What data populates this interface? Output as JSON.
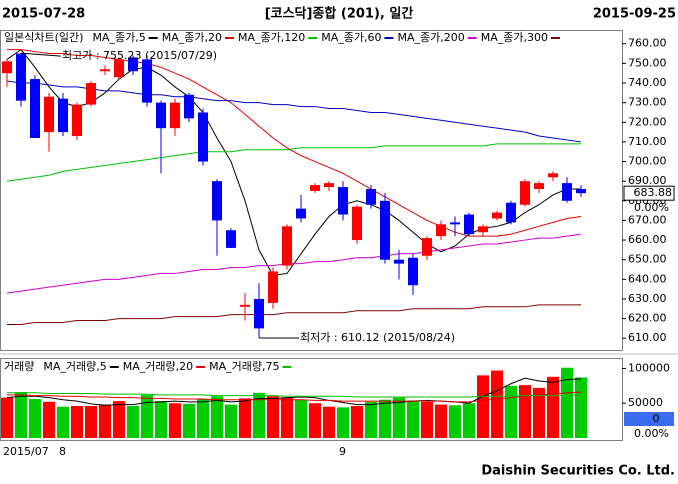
{
  "header": {
    "start_date": "2015-07-28",
    "title": "[코스닥]종합 (201), 일간",
    "end_date": "2015-09-25"
  },
  "footer": "Daishin Securities Co. Ltd.",
  "chart_data": [
    {
      "type": "candlestick",
      "legend_title": "일본식차트(일간)",
      "categories": [
        "2015/07",
        null,
        null,
        null,
        "8",
        null,
        null,
        null,
        null,
        null,
        null,
        null,
        null,
        null,
        null,
        null,
        null,
        null,
        null,
        null,
        null,
        null,
        null,
        null,
        "9",
        null,
        null,
        null,
        null,
        null,
        null,
        null,
        null,
        null,
        null,
        null,
        null,
        null,
        null,
        null,
        null,
        null
      ],
      "open": [
        745,
        755,
        742,
        715,
        732,
        713,
        729,
        746,
        743,
        753,
        752,
        730,
        717,
        734,
        725,
        690,
        665,
        626,
        630,
        628,
        647,
        676,
        685,
        687,
        687,
        660,
        686,
        680,
        650,
        651,
        652,
        662,
        669,
        673,
        664,
        671,
        679,
        678,
        686,
        692,
        689,
        686
      ],
      "high": [
        752,
        755.23,
        744,
        735,
        735,
        730,
        741,
        749,
        753,
        754,
        754,
        731,
        732,
        735,
        727,
        691,
        666,
        633,
        638,
        646,
        668,
        683,
        689,
        690,
        690,
        678,
        688,
        684,
        655,
        653,
        662,
        670,
        672,
        674,
        668,
        675,
        680,
        691,
        690,
        695,
        692,
        688
      ],
      "low": [
        738,
        728,
        712,
        705,
        713,
        711,
        728,
        744,
        742,
        744,
        728,
        694,
        713,
        720,
        698,
        652,
        656,
        619,
        610.12,
        625,
        645,
        669,
        684,
        685,
        670,
        658,
        676,
        648,
        640,
        632,
        650,
        660,
        662,
        662,
        662,
        670,
        668,
        677,
        684,
        690,
        679,
        682
      ],
      "close": [
        751,
        731,
        712,
        733,
        715,
        729,
        740,
        747,
        752,
        746,
        730,
        717,
        730,
        722,
        700,
        670,
        656,
        627,
        615,
        644,
        667,
        671,
        688,
        689,
        673,
        677,
        678,
        650,
        648,
        637,
        661,
        668,
        668,
        663,
        667,
        674,
        669,
        690,
        689,
        694,
        680,
        683.88
      ],
      "up_color": "#ff0000",
      "down_color": "#0000ff",
      "series": [
        {
          "name": "MA_종가,5",
          "color": "#000000",
          "values": [
            752,
            757,
            748,
            738,
            730,
            728,
            730,
            735,
            742,
            747,
            748,
            744,
            738,
            733,
            725,
            712,
            700,
            680,
            655,
            642,
            643,
            653,
            663,
            672,
            678,
            680,
            678,
            675,
            670,
            664,
            658,
            654,
            657,
            663,
            666,
            667,
            669,
            674,
            678,
            683,
            686,
            686
          ]
        },
        {
          "name": "MA_종가,20",
          "color": "#e00000",
          "values": [
            757,
            757,
            756,
            755,
            755,
            754,
            754,
            753,
            752,
            751,
            750,
            748,
            745,
            742,
            738,
            734,
            730,
            724,
            718,
            712,
            707,
            703,
            700,
            697,
            694,
            690,
            686,
            682,
            678,
            674,
            670,
            667,
            664,
            662,
            662,
            662,
            663,
            665,
            667,
            669,
            671,
            672
          ]
        },
        {
          "name": "MA_종가,120",
          "color": "#00c000",
          "values": [
            690,
            691,
            692,
            693,
            695,
            696,
            697,
            698,
            699,
            700,
            701,
            702,
            703,
            704,
            705,
            705,
            705,
            706,
            706,
            706,
            706,
            707,
            707,
            707,
            707,
            707,
            707,
            708,
            708,
            708,
            708,
            708,
            708,
            708,
            708,
            709,
            709,
            709,
            709,
            709,
            709,
            709
          ]
        },
        {
          "name": "MA_종가,60",
          "color": "#0000c0",
          "values": [
            741,
            740,
            740,
            739,
            738,
            738,
            737,
            736,
            736,
            735,
            734,
            734,
            733,
            733,
            732,
            731,
            731,
            730,
            730,
            729,
            729,
            728,
            728,
            727,
            727,
            726,
            725,
            725,
            724,
            723,
            722,
            721,
            720,
            719,
            718,
            717,
            716,
            715,
            713,
            712,
            711,
            710
          ]
        },
        {
          "name": "MA_종가,200",
          "color": "#cc00cc",
          "values": [
            633,
            634,
            635,
            636,
            637,
            638,
            639,
            640,
            640,
            641,
            642,
            643,
            643,
            644,
            645,
            645,
            646,
            646,
            647,
            647,
            648,
            648,
            649,
            649,
            650,
            651,
            651,
            652,
            653,
            653,
            654,
            655,
            656,
            657,
            658,
            658,
            659,
            660,
            661,
            661,
            662,
            663
          ]
        },
        {
          "name": "MA_종가,300",
          "color": "#800000",
          "values": [
            617,
            617,
            618,
            618,
            618,
            619,
            619,
            619,
            620,
            620,
            620,
            620,
            621,
            621,
            621,
            621,
            622,
            622,
            622,
            622,
            623,
            623,
            623,
            623,
            623,
            624,
            624,
            624,
            624,
            625,
            625,
            625,
            625,
            625,
            626,
            626,
            626,
            626,
            627,
            627,
            627,
            627
          ]
        }
      ],
      "ylim": [
        604,
        767
      ],
      "yticks": [
        {
          "value": 610,
          "label": "610.00"
        },
        {
          "value": 620,
          "label": "620.00"
        },
        {
          "value": 630,
          "label": "630.00"
        },
        {
          "value": 640,
          "label": "640.00"
        },
        {
          "value": 650,
          "label": "650.00"
        },
        {
          "value": 660,
          "label": "660.00"
        },
        {
          "value": 670,
          "label": "670.00"
        },
        {
          "value": 680,
          "label": "680.00"
        },
        {
          "value": 690,
          "label": "690.00"
        },
        {
          "value": 700,
          "label": "700.00"
        },
        {
          "value": 710,
          "label": "710.00"
        },
        {
          "value": 720,
          "label": "720.00"
        },
        {
          "value": 730,
          "label": "730.00"
        },
        {
          "value": 740,
          "label": "740.00"
        },
        {
          "value": 750,
          "label": "750.00"
        },
        {
          "value": 760,
          "label": "760.00"
        }
      ],
      "grid": false,
      "annotations": [
        {
          "text": "최고가 : 755.23 (2015/07/29)",
          "color": "#dd0000"
        },
        {
          "text": "최저가 : 610.12 (2015/08/24)",
          "color": "#0000cc"
        }
      ],
      "last_label": 683.88,
      "change_label": "0.00%"
    },
    {
      "type": "bar",
      "title": "거래량",
      "values": [
        58000,
        66000,
        56000,
        52000,
        45000,
        46000,
        46000,
        48000,
        53000,
        46000,
        62000,
        53000,
        50000,
        49000,
        56000,
        60000,
        48000,
        57000,
        65000,
        60000,
        58000,
        55000,
        50000,
        45000,
        44000,
        46000,
        52000,
        55000,
        58000,
        54000,
        52000,
        48000,
        47000,
        50000,
        90000,
        97000,
        75000,
        76000,
        72000,
        88000,
        101000,
        87000
      ],
      "up_color": "#ff0000",
      "down_color": "#00cc00",
      "series": [
        {
          "name": "MA_거래량,5",
          "color": "#000000",
          "values": [
            58000,
            60000,
            60000,
            58000,
            55000,
            53000,
            49000,
            47000,
            48000,
            48000,
            51000,
            52000,
            53000,
            52000,
            52000,
            54000,
            52000,
            53000,
            57000,
            57000,
            58000,
            59000,
            58000,
            54000,
            51000,
            48000,
            48000,
            50000,
            51000,
            53000,
            54000,
            53000,
            52000,
            50000,
            60000,
            68000,
            78000,
            86000,
            82000,
            80000,
            84000,
            85000
          ]
        },
        {
          "name": "MA_거래량,20",
          "color": "#e00000",
          "values": [
            62000,
            62000,
            61000,
            61000,
            60000,
            60000,
            59000,
            59000,
            58000,
            58000,
            57000,
            57000,
            56000,
            56000,
            56000,
            55000,
            55000,
            55000,
            55000,
            55000,
            55000,
            55000,
            54000,
            54000,
            53000,
            53000,
            53000,
            53000,
            53000,
            53000,
            53000,
            53000,
            52000,
            52000,
            54000,
            56000,
            58000,
            60000,
            62000,
            63000,
            65000,
            66000
          ]
        },
        {
          "name": "MA_거래량,75",
          "color": "#00c000",
          "values": [
            65000,
            65000,
            65000,
            64000,
            64000,
            64000,
            64000,
            63000,
            63000,
            63000,
            63000,
            62000,
            62000,
            62000,
            62000,
            61000,
            61000,
            61000,
            61000,
            61000,
            60000,
            60000,
            60000,
            60000,
            60000,
            59000,
            59000,
            59000,
            59000,
            59000,
            59000,
            59000,
            59000,
            59000,
            60000,
            60000,
            60000,
            61000,
            61000,
            61000,
            62000,
            62000
          ]
        }
      ],
      "ylim": [
        0,
        115000
      ],
      "yticks": [
        50000,
        100000
      ],
      "last_label": 0,
      "change_label": "0.00%"
    }
  ]
}
